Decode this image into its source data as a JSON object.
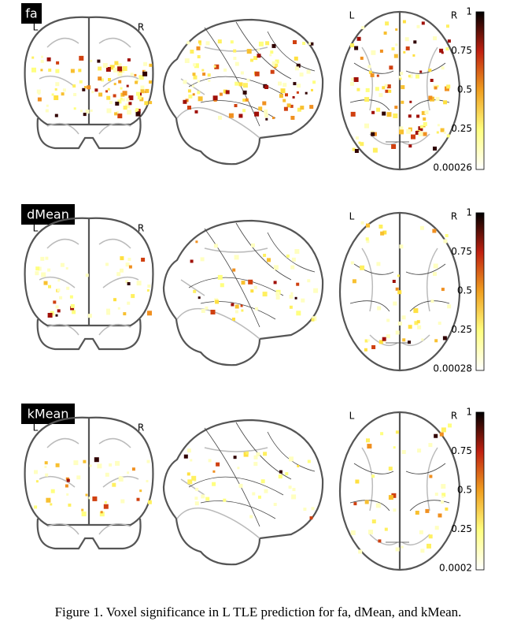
{
  "panels": [
    {
      "label": "fa",
      "coronal_left": "L",
      "coronal_right": "R",
      "axial_left": "L",
      "axial_right": "R",
      "colorbar_ticks": [
        "1",
        "0.75",
        "0.5",
        "0.25",
        "0.00026"
      ]
    },
    {
      "label": "dMean",
      "coronal_left": "L",
      "coronal_right": "R",
      "axial_left": "L",
      "axial_right": "R",
      "colorbar_ticks": [
        "1",
        "0.75",
        "0.5",
        "0.25",
        "0.00028"
      ]
    },
    {
      "label": "kMean",
      "coronal_left": "L",
      "coronal_right": "R",
      "axial_left": "L",
      "axial_right": "R",
      "colorbar_ticks": [
        "1",
        "0.75",
        "0.5",
        "0.25",
        "0.0002"
      ]
    }
  ],
  "caption": "Figure 1. Voxel significance in L TLE prediction for fa, dMean, and kMean."
}
